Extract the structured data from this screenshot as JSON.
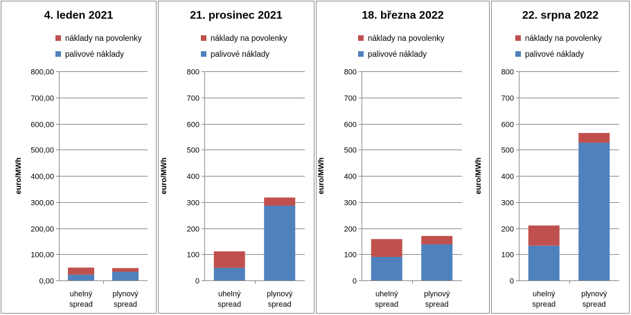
{
  "chart_data": [
    {
      "type": "bar",
      "stacked": true,
      "title": "4. leden 2021",
      "ylabel": "euro/MWh",
      "ylim": [
        0,
        800
      ],
      "yticks": [
        "0,00",
        "100,00",
        "200,00",
        "300,00",
        "400,00",
        "500,00",
        "600,00",
        "700,00",
        "800,00"
      ],
      "categories": [
        [
          "uhelný",
          "spread"
        ],
        [
          "plynový",
          "spread"
        ]
      ],
      "series": [
        {
          "name": "palivové náklady",
          "color": "#4f81bd",
          "values": [
            22,
            33
          ]
        },
        {
          "name": "náklady na povolenky",
          "color": "#c0504d",
          "values": [
            27,
            14
          ]
        }
      ],
      "grid": true,
      "legend": "top"
    },
    {
      "type": "bar",
      "stacked": true,
      "title": "21. prosinec 2021",
      "ylabel": "euro/MWh",
      "ylim": [
        0,
        800
      ],
      "yticks": [
        "0",
        "100",
        "200",
        "300",
        "400",
        "500",
        "600",
        "700",
        "800"
      ],
      "categories": [
        [
          "uhelný",
          "spread"
        ],
        [
          "plynový",
          "spread"
        ]
      ],
      "series": [
        {
          "name": "palivové náklady",
          "color": "#4f81bd",
          "values": [
            48,
            286
          ]
        },
        {
          "name": "náklady na povolenky",
          "color": "#c0504d",
          "values": [
            63,
            31
          ]
        }
      ],
      "grid": true,
      "legend": "top"
    },
    {
      "type": "bar",
      "stacked": true,
      "title": "18. března 2022",
      "ylabel": "euro/MWh",
      "ylim": [
        0,
        800
      ],
      "yticks": [
        "0",
        "100",
        "200",
        "300",
        "400",
        "500",
        "600",
        "700",
        "800"
      ],
      "categories": [
        [
          "uhelný",
          "spread"
        ],
        [
          "plynový",
          "spread"
        ]
      ],
      "series": [
        {
          "name": "palivové náklady",
          "color": "#4f81bd",
          "values": [
            90,
            138
          ]
        },
        {
          "name": "náklady na povolenky",
          "color": "#c0504d",
          "values": [
            68,
            32
          ]
        }
      ],
      "grid": true,
      "legend": "top"
    },
    {
      "type": "bar",
      "stacked": true,
      "title": "22. srpna 2022",
      "ylabel": "euro/MWh",
      "ylim": [
        0,
        800
      ],
      "yticks": [
        "0",
        "100",
        "200",
        "300",
        "400",
        "500",
        "600",
        "700",
        "800"
      ],
      "categories": [
        [
          "uhelný",
          "spread"
        ],
        [
          "plynový",
          "spread"
        ]
      ],
      "series": [
        {
          "name": "palivové náklady",
          "color": "#4f81bd",
          "values": [
            133,
            527
          ]
        },
        {
          "name": "náklady na povolenky",
          "color": "#c0504d",
          "values": [
            77,
            37
          ]
        }
      ],
      "grid": true,
      "legend": "top"
    }
  ]
}
